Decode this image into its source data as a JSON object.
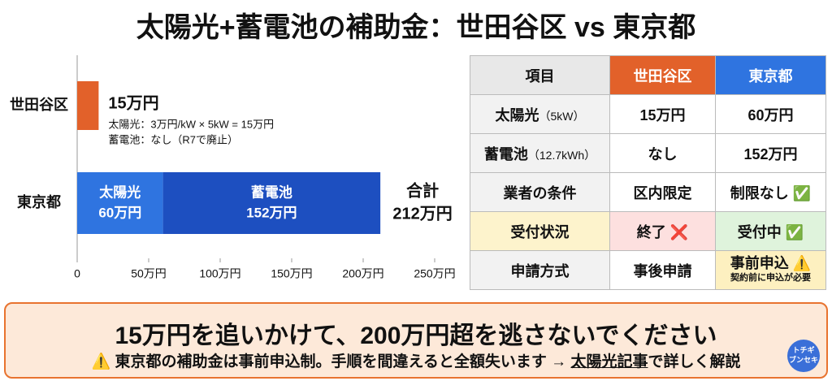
{
  "title": "太陽光+蓄電池の補助金：世田谷区 vs 東京都",
  "chart_data": {
    "type": "stacked-barh",
    "categories": [
      "世田谷区",
      "東京都"
    ],
    "series": [
      {
        "name": "太陽光",
        "colors": [
          "#e2612a",
          "#2f74e0"
        ],
        "values": [
          15,
          60
        ],
        "value_labels": [
          "15万円",
          "60万円"
        ]
      },
      {
        "name": "蓄電池",
        "color": "#1d4fc0",
        "values": [
          null,
          152
        ],
        "value_labels": [
          null,
          "152万円"
        ]
      }
    ],
    "notes": [
      "太陽光：3万円/kW × 5kW = 15万円",
      "蓄電池：なし（R7で廃止）"
    ],
    "total_label": "合計",
    "total_value_label": "212万円",
    "xlim": [
      0,
      250
    ],
    "xticks": [
      0,
      {
        "value": 50,
        "label": "50万円"
      },
      {
        "value": 100,
        "label": "100万円"
      },
      {
        "value": 150,
        "label": "150万円"
      },
      {
        "value": 200,
        "label": "200万円"
      },
      {
        "value": 250,
        "label": "250万円"
      }
    ]
  },
  "table": {
    "header": [
      "項目",
      "世田谷区",
      "東京都"
    ],
    "rows": [
      [
        {
          "main": "太陽光",
          "note": "（5kW）"
        },
        "15万円",
        "60万円"
      ],
      [
        {
          "main": "蓄電池",
          "note": "（12.7kWh）"
        },
        "なし",
        "152万円"
      ],
      [
        "業者の条件",
        "区内限定",
        "制限なし ✅"
      ],
      [
        "受付状況",
        "終了 ❌",
        "受付中 ✅"
      ],
      [
        "申請方式",
        "事後申請",
        {
          "main": "事前申込 ⚠️",
          "note": "契約前に申込が必要"
        }
      ]
    ]
  },
  "footer": {
    "headline": "15万円を追いかけて、200万円超を逃さないでください",
    "sub_before": "⚠️ 東京都の補助金は事前申込制。手順を間違えると全額失います → ",
    "sub_link": "太陽光記事",
    "sub_after": "で詳しく解説",
    "logo": [
      "トチギ",
      "ブンセキ"
    ]
  }
}
